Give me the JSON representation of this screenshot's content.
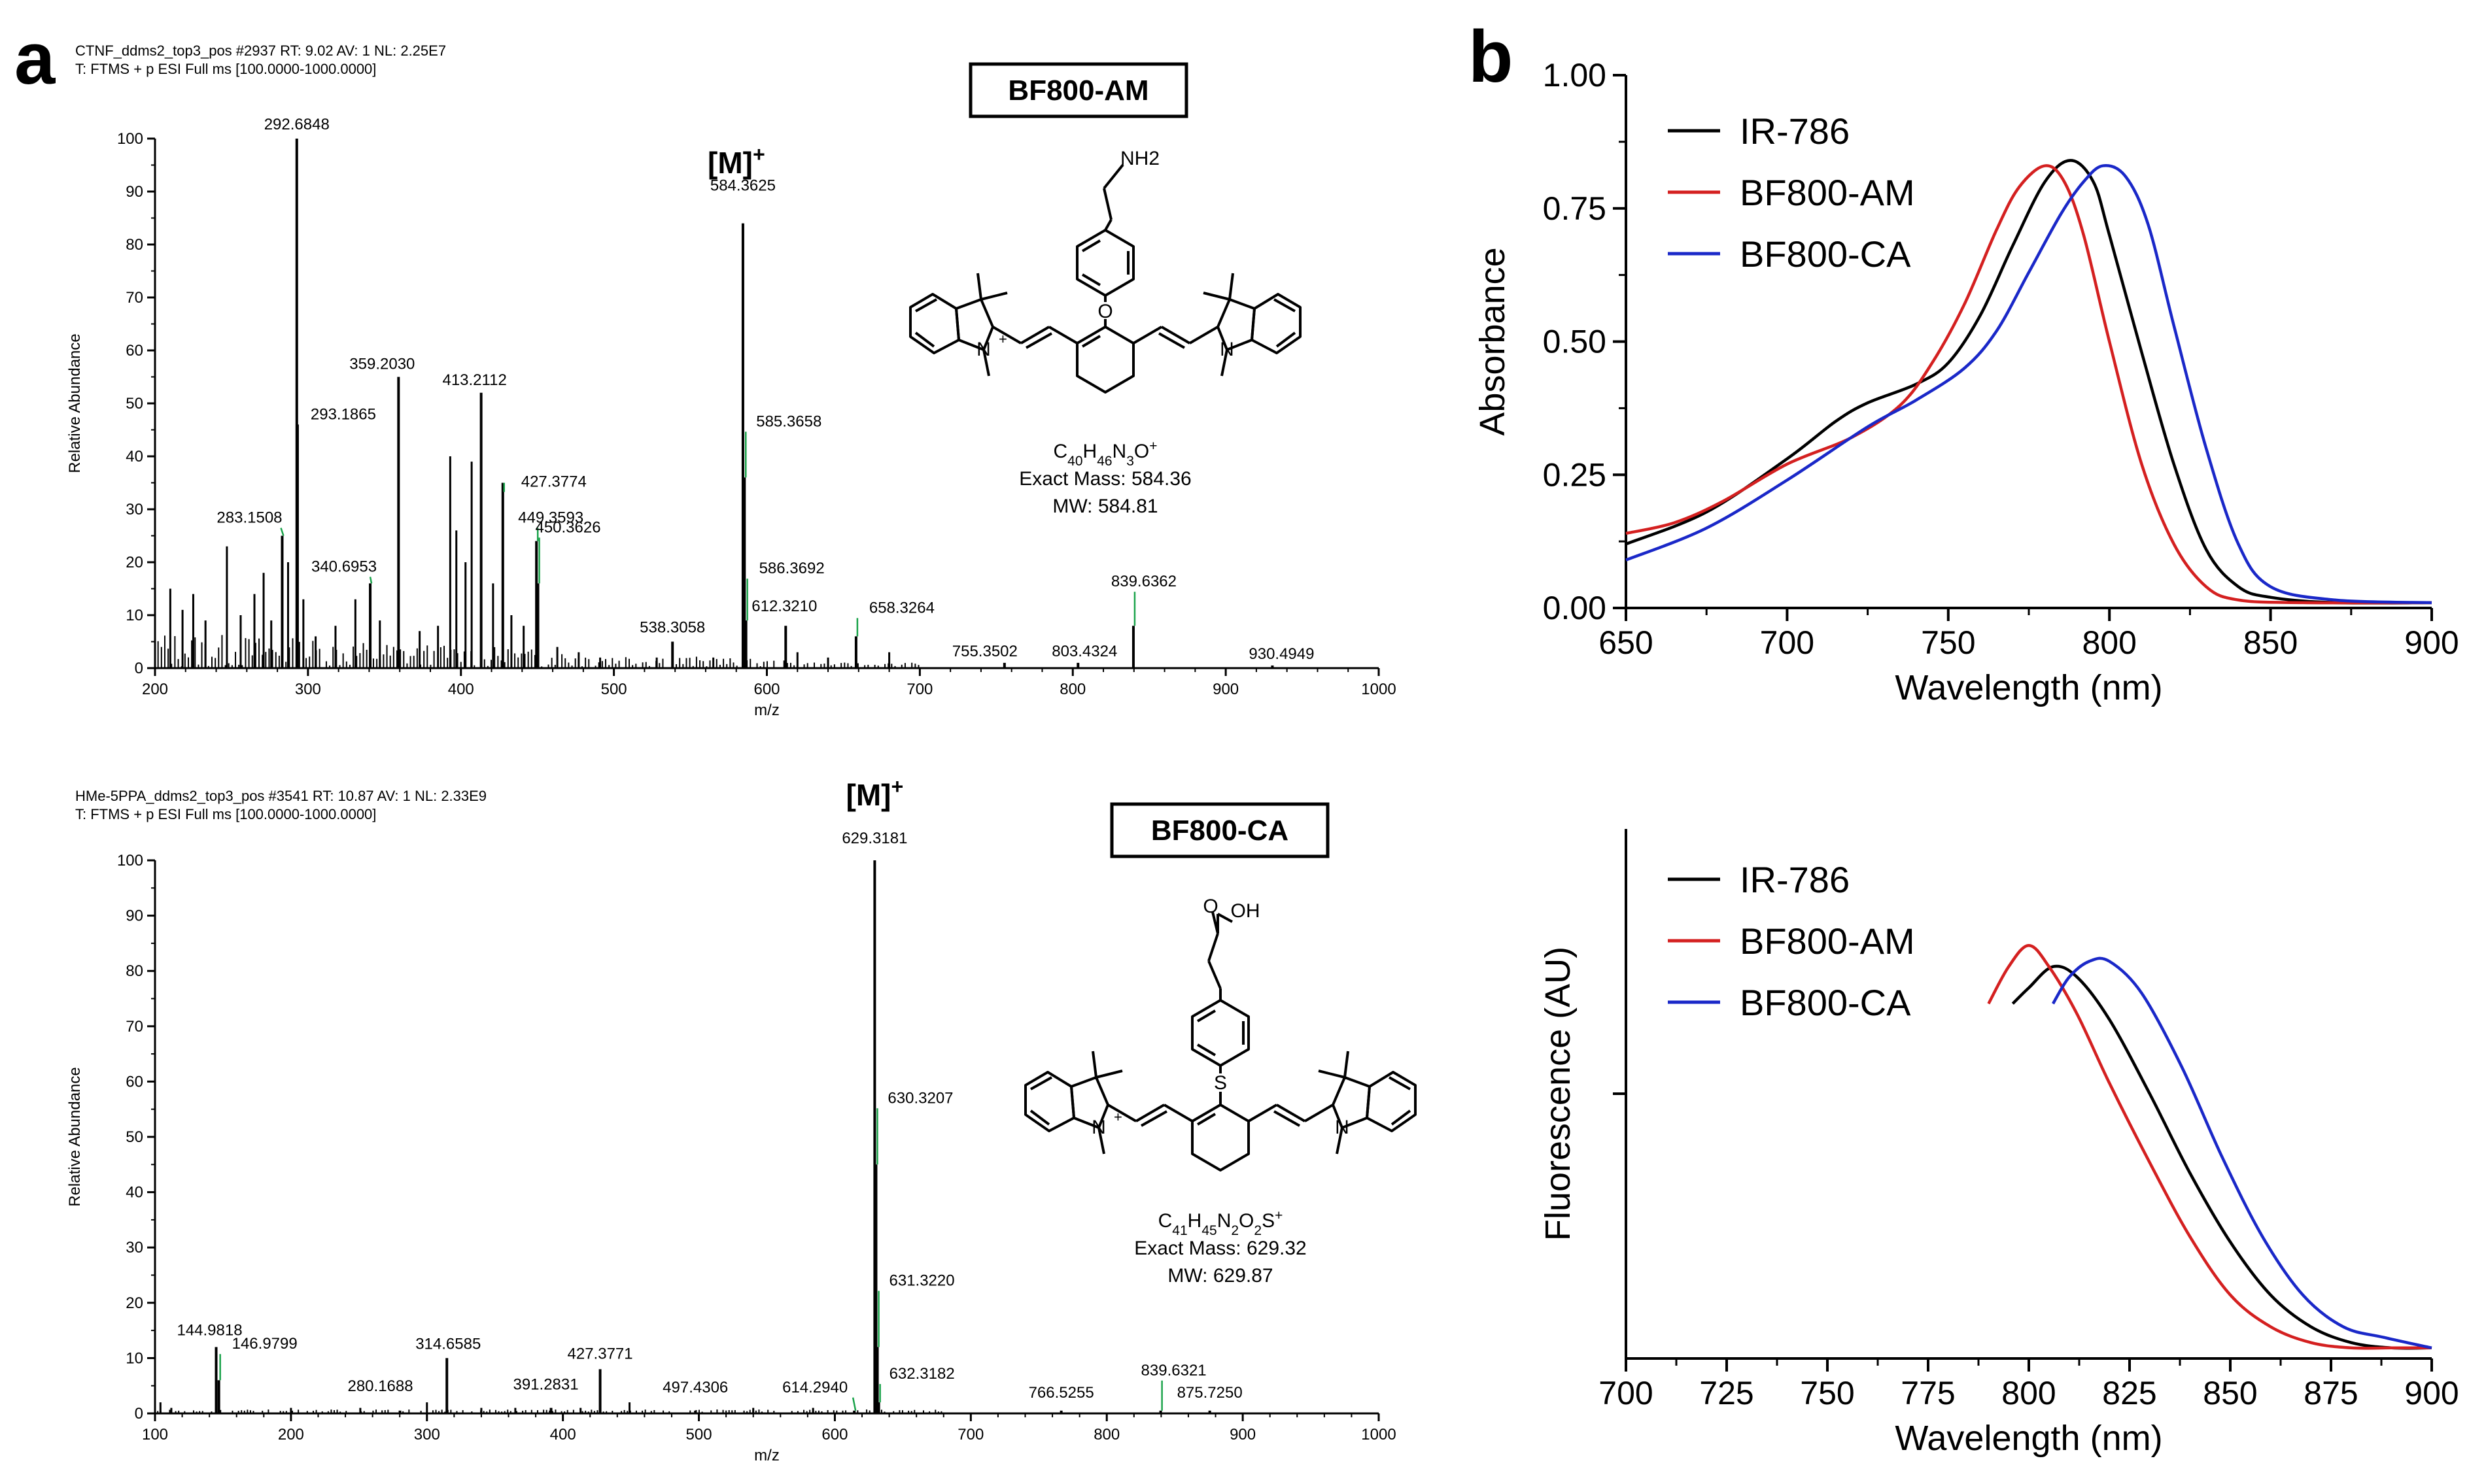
{
  "panels": {
    "a": "a",
    "b": "b"
  },
  "chart_data": [
    {
      "type": "bar",
      "id": "ms1",
      "header_lines": [
        "CTNF_ddms2_top3_pos #2937 RT: 9.02 AV: 1 NL: 2.25E7",
        "T: FTMS + p ESI Full ms [100.0000-1000.0000]"
      ],
      "xlabel": "m/z",
      "ylabel": "Relative Abundance",
      "xlim": [
        200,
        1000
      ],
      "ylim": [
        0,
        100
      ],
      "xticks": [
        200,
        300,
        400,
        500,
        600,
        700,
        800,
        900,
        1000
      ],
      "yticks": [
        0,
        10,
        20,
        30,
        40,
        50,
        60,
        70,
        80,
        90,
        100
      ],
      "compound": {
        "name": "BF800-AM",
        "amine_label": "NH2",
        "formula": "C40H46N3O+",
        "exact_mass": "Exact Mass: 584.36",
        "mw": "MW: 584.81"
      },
      "molecular_ion_label": "[M]+",
      "molecular_ion_mz": 584.3625,
      "peaks": [
        {
          "mz": 292.6848,
          "value": 100,
          "label": "292.6848"
        },
        {
          "mz": 293.1865,
          "value": 46,
          "label": "293.1865"
        },
        {
          "mz": 283.1508,
          "value": 25,
          "label": "283.1508"
        },
        {
          "mz": 359.203,
          "value": 55,
          "label": "359.2030"
        },
        {
          "mz": 413.2112,
          "value": 52,
          "label": "413.2112"
        },
        {
          "mz": 427.3774,
          "value": 35,
          "label": "427.3774"
        },
        {
          "mz": 449.3593,
          "value": 24,
          "label": "449.3593"
        },
        {
          "mz": 450.3626,
          "value": 16,
          "label": "450.3626"
        },
        {
          "mz": 340.6953,
          "value": 16,
          "label": "340.6953"
        },
        {
          "mz": 538.3058,
          "value": 5,
          "label": "538.3058"
        },
        {
          "mz": 584.3625,
          "value": 84,
          "label": "584.3625"
        },
        {
          "mz": 585.3658,
          "value": 36,
          "label": "585.3658"
        },
        {
          "mz": 586.3692,
          "value": 9,
          "label": "586.3692"
        },
        {
          "mz": 612.321,
          "value": 8,
          "label": "612.3210"
        },
        {
          "mz": 658.3264,
          "value": 6,
          "label": "658.3264"
        },
        {
          "mz": 755.3502,
          "value": 1,
          "label": "755.3502"
        },
        {
          "mz": 803.4324,
          "value": 1,
          "label": "803.4324"
        },
        {
          "mz": 839.6362,
          "value": 8,
          "label": "839.6362"
        },
        {
          "mz": 930.4949,
          "value": 0.5,
          "label": "930.4949"
        }
      ],
      "minor_peaks": [
        {
          "mz": 210,
          "value": 15
        },
        {
          "mz": 218,
          "value": 11
        },
        {
          "mz": 225,
          "value": 14
        },
        {
          "mz": 233,
          "value": 9
        },
        {
          "mz": 247,
          "value": 23
        },
        {
          "mz": 256,
          "value": 10
        },
        {
          "mz": 265,
          "value": 14
        },
        {
          "mz": 271,
          "value": 18
        },
        {
          "mz": 276,
          "value": 9
        },
        {
          "mz": 287,
          "value": 20
        },
        {
          "mz": 297,
          "value": 13
        },
        {
          "mz": 305,
          "value": 6
        },
        {
          "mz": 318,
          "value": 8
        },
        {
          "mz": 331,
          "value": 13
        },
        {
          "mz": 347,
          "value": 9
        },
        {
          "mz": 373,
          "value": 7
        },
        {
          "mz": 385,
          "value": 8
        },
        {
          "mz": 393,
          "value": 40
        },
        {
          "mz": 397,
          "value": 26
        },
        {
          "mz": 403,
          "value": 20
        },
        {
          "mz": 407,
          "value": 39
        },
        {
          "mz": 421,
          "value": 16
        },
        {
          "mz": 433,
          "value": 10
        },
        {
          "mz": 441,
          "value": 8
        },
        {
          "mz": 463,
          "value": 4
        },
        {
          "mz": 477,
          "value": 3
        },
        {
          "mz": 491,
          "value": 2
        },
        {
          "mz": 528,
          "value": 2
        },
        {
          "mz": 565,
          "value": 2
        },
        {
          "mz": 620,
          "value": 3
        },
        {
          "mz": 640,
          "value": 2
        },
        {
          "mz": 680,
          "value": 3
        }
      ]
    },
    {
      "type": "bar",
      "id": "ms2",
      "header_lines": [
        "HMe-5PPA_ddms2_top3_pos #3541 RT: 10.87 AV: 1 NL: 2.33E9",
        "T: FTMS + p ESI Full ms [100.0000-1000.0000]"
      ],
      "xlabel": "m/z",
      "ylabel": "Relative Abundance",
      "xlim": [
        100,
        1000
      ],
      "ylim": [
        0,
        100
      ],
      "xticks": [
        100,
        200,
        300,
        400,
        500,
        600,
        700,
        800,
        900,
        1000
      ],
      "yticks": [
        0,
        10,
        20,
        30,
        40,
        50,
        60,
        70,
        80,
        90,
        100
      ],
      "compound": {
        "name": "BF800-CA",
        "acid_label": "O",
        "acid_label_oh": "OH",
        "formula": "C41H45N2O2S+",
        "exact_mass": "Exact Mass: 629.32",
        "mw": "MW: 629.87"
      },
      "molecular_ion_label": "[M]+",
      "molecular_ion_mz": 629.3181,
      "peaks": [
        {
          "mz": 144.9818,
          "value": 12,
          "label": "144.9818"
        },
        {
          "mz": 146.9799,
          "value": 6,
          "label": "146.9799"
        },
        {
          "mz": 280.1688,
          "value": 0.5,
          "label": "280.1688"
        },
        {
          "mz": 314.6585,
          "value": 10,
          "label": "314.6585"
        },
        {
          "mz": 391.2831,
          "value": 1,
          "label": "391.2831"
        },
        {
          "mz": 427.3771,
          "value": 8,
          "label": "427.3771"
        },
        {
          "mz": 497.4306,
          "value": 0.5,
          "label": "497.4306"
        },
        {
          "mz": 614.294,
          "value": 0.5,
          "label": "614.2940"
        },
        {
          "mz": 629.3181,
          "value": 100,
          "label": "629.3181"
        },
        {
          "mz": 630.3207,
          "value": 45,
          "label": "630.3207"
        },
        {
          "mz": 631.322,
          "value": 12,
          "label": "631.3220"
        },
        {
          "mz": 632.3182,
          "value": 2,
          "label": "632.3182"
        },
        {
          "mz": 766.5255,
          "value": 0.5,
          "label": "766.5255"
        },
        {
          "mz": 839.6321,
          "value": 0.5,
          "label": "839.6321"
        },
        {
          "mz": 875.725,
          "value": 0.5,
          "label": "875.7250"
        }
      ],
      "minor_peaks": [
        {
          "mz": 104,
          "value": 2
        },
        {
          "mz": 112,
          "value": 1
        },
        {
          "mz": 200,
          "value": 1
        },
        {
          "mz": 251,
          "value": 1
        },
        {
          "mz": 300,
          "value": 2
        },
        {
          "mz": 340,
          "value": 1
        },
        {
          "mz": 365,
          "value": 1
        },
        {
          "mz": 413,
          "value": 1
        },
        {
          "mz": 449,
          "value": 2
        },
        {
          "mz": 540,
          "value": 1
        },
        {
          "mz": 584,
          "value": 1
        }
      ]
    },
    {
      "type": "line",
      "id": "abs",
      "xlabel": "Wavelength (nm)",
      "ylabel": "Absorbance",
      "xlim": [
        650,
        900
      ],
      "ylim": [
        0,
        1.0
      ],
      "xticks": [
        650,
        700,
        750,
        800,
        850,
        900
      ],
      "yticks": [
        "0.00",
        "0.25",
        "0.50",
        "0.75",
        "1.00"
      ],
      "legend": "top-left",
      "series": [
        {
          "name": "IR-786",
          "color": "#000000",
          "x": [
            650,
            675,
            700,
            715,
            725,
            740,
            750,
            760,
            770,
            780,
            788,
            795,
            800,
            810,
            820,
            830,
            840,
            850,
            870,
            900
          ],
          "y": [
            0.12,
            0.18,
            0.28,
            0.35,
            0.385,
            0.42,
            0.46,
            0.55,
            0.68,
            0.8,
            0.84,
            0.8,
            0.7,
            0.48,
            0.27,
            0.11,
            0.04,
            0.02,
            0.01,
            0.01
          ]
        },
        {
          "name": "BF800-AM",
          "color": "#d42020",
          "x": [
            650,
            665,
            680,
            700,
            720,
            735,
            745,
            755,
            765,
            772,
            780,
            786,
            792,
            800,
            810,
            820,
            830,
            840,
            860,
            900
          ],
          "y": [
            0.14,
            0.16,
            0.2,
            0.27,
            0.32,
            0.38,
            0.46,
            0.57,
            0.71,
            0.79,
            0.83,
            0.8,
            0.7,
            0.5,
            0.27,
            0.12,
            0.04,
            0.015,
            0.01,
            0.01
          ]
        },
        {
          "name": "BF800-CA",
          "color": "#1a28c8",
          "x": [
            650,
            675,
            700,
            725,
            740,
            755,
            765,
            775,
            785,
            792,
            798,
            805,
            812,
            820,
            830,
            840,
            850,
            870,
            900
          ],
          "y": [
            0.09,
            0.15,
            0.24,
            0.34,
            0.39,
            0.45,
            0.52,
            0.63,
            0.74,
            0.8,
            0.83,
            0.81,
            0.72,
            0.53,
            0.3,
            0.12,
            0.04,
            0.015,
            0.01
          ]
        }
      ]
    },
    {
      "type": "line",
      "id": "fluor",
      "xlabel": "Wavelength (nm)",
      "ylabel": "Fluorescence (AU)",
      "xlim": [
        700,
        900
      ],
      "ylim": [
        0,
        1.0
      ],
      "xticks": [
        700,
        725,
        750,
        775,
        800,
        825,
        850,
        875,
        900
      ],
      "legend": "top-left",
      "series": [
        {
          "name": "IR-786",
          "color": "#000000",
          "x": [
            796,
            800,
            806,
            812,
            820,
            830,
            840,
            850,
            860,
            870,
            880,
            890,
            900
          ],
          "y": [
            0.67,
            0.7,
            0.74,
            0.72,
            0.64,
            0.5,
            0.35,
            0.22,
            0.12,
            0.06,
            0.03,
            0.02,
            0.02
          ]
        },
        {
          "name": "BF800-AM",
          "color": "#d42020",
          "x": [
            790,
            795,
            800,
            805,
            812,
            820,
            830,
            840,
            850,
            860,
            870,
            880,
            890,
            900
          ],
          "y": [
            0.67,
            0.74,
            0.78,
            0.74,
            0.65,
            0.52,
            0.37,
            0.23,
            0.12,
            0.06,
            0.03,
            0.02,
            0.02,
            0.02
          ]
        },
        {
          "name": "BF800-CA",
          "color": "#1a28c8",
          "x": [
            806,
            810,
            815,
            820,
            828,
            838,
            848,
            858,
            868,
            878,
            888,
            900
          ],
          "y": [
            0.67,
            0.72,
            0.75,
            0.75,
            0.69,
            0.55,
            0.38,
            0.23,
            0.12,
            0.06,
            0.04,
            0.02
          ]
        }
      ]
    }
  ]
}
